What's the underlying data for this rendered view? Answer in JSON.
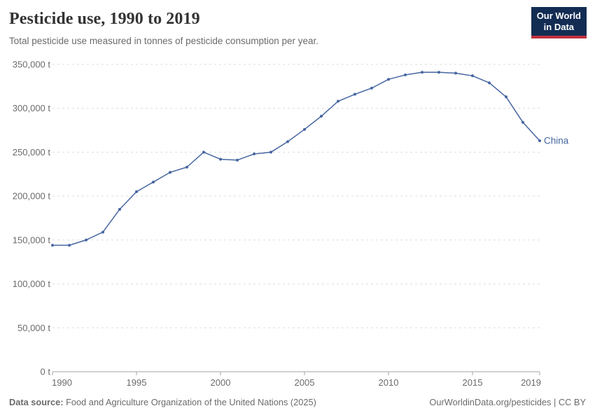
{
  "header": {
    "title": "Pesticide use, 1990 to 2019",
    "subtitle": "Total pesticide use measured in tonnes of pesticide consumption per year."
  },
  "logo": {
    "line1": "Our World",
    "line2": "in Data",
    "bg_color": "#132C53",
    "accent_color": "#C0313F",
    "text_color": "#ffffff"
  },
  "chart_data": {
    "type": "line",
    "title": "Pesticide use, 1990 to 2019",
    "xlabel": "",
    "ylabel": "",
    "x": [
      1990,
      1991,
      1992,
      1993,
      1994,
      1995,
      1996,
      1997,
      1998,
      1999,
      2000,
      2001,
      2002,
      2003,
      2004,
      2005,
      2006,
      2007,
      2008,
      2009,
      2010,
      2011,
      2012,
      2013,
      2014,
      2015,
      2016,
      2017,
      2018,
      2019
    ],
    "series": [
      {
        "name": "China",
        "color": "#4666A1",
        "values": [
          144000,
          144000,
          150000,
          159000,
          185000,
          205000,
          216000,
          227000,
          233000,
          250000,
          242000,
          241000,
          248000,
          250000,
          262000,
          276000,
          291000,
          308000,
          316000,
          323000,
          333000,
          338000,
          341000,
          341000,
          340000,
          337000,
          329000,
          313000,
          284000,
          263000
        ]
      }
    ],
    "ylim": [
      0,
      350000
    ],
    "ytick_step": 50000,
    "ytick_suffix": " t",
    "xticks": [
      1990,
      1995,
      2000,
      2005,
      2010,
      2015,
      2019
    ],
    "grid": "horizontal-dashed",
    "legend": "end-of-line-label",
    "markers": true
  },
  "footer": {
    "source_label": "Data source:",
    "source_text": " Food and Agriculture Organization of the United Nations (2025)",
    "credit": "OurWorldinData.org/pesticides | CC BY"
  },
  "colors": {
    "title": "#333333",
    "muted_text": "#6b6b6b",
    "gridline": "#dcdcdc",
    "axis": "#a3a3a3",
    "series_blue": "#4666A1"
  }
}
